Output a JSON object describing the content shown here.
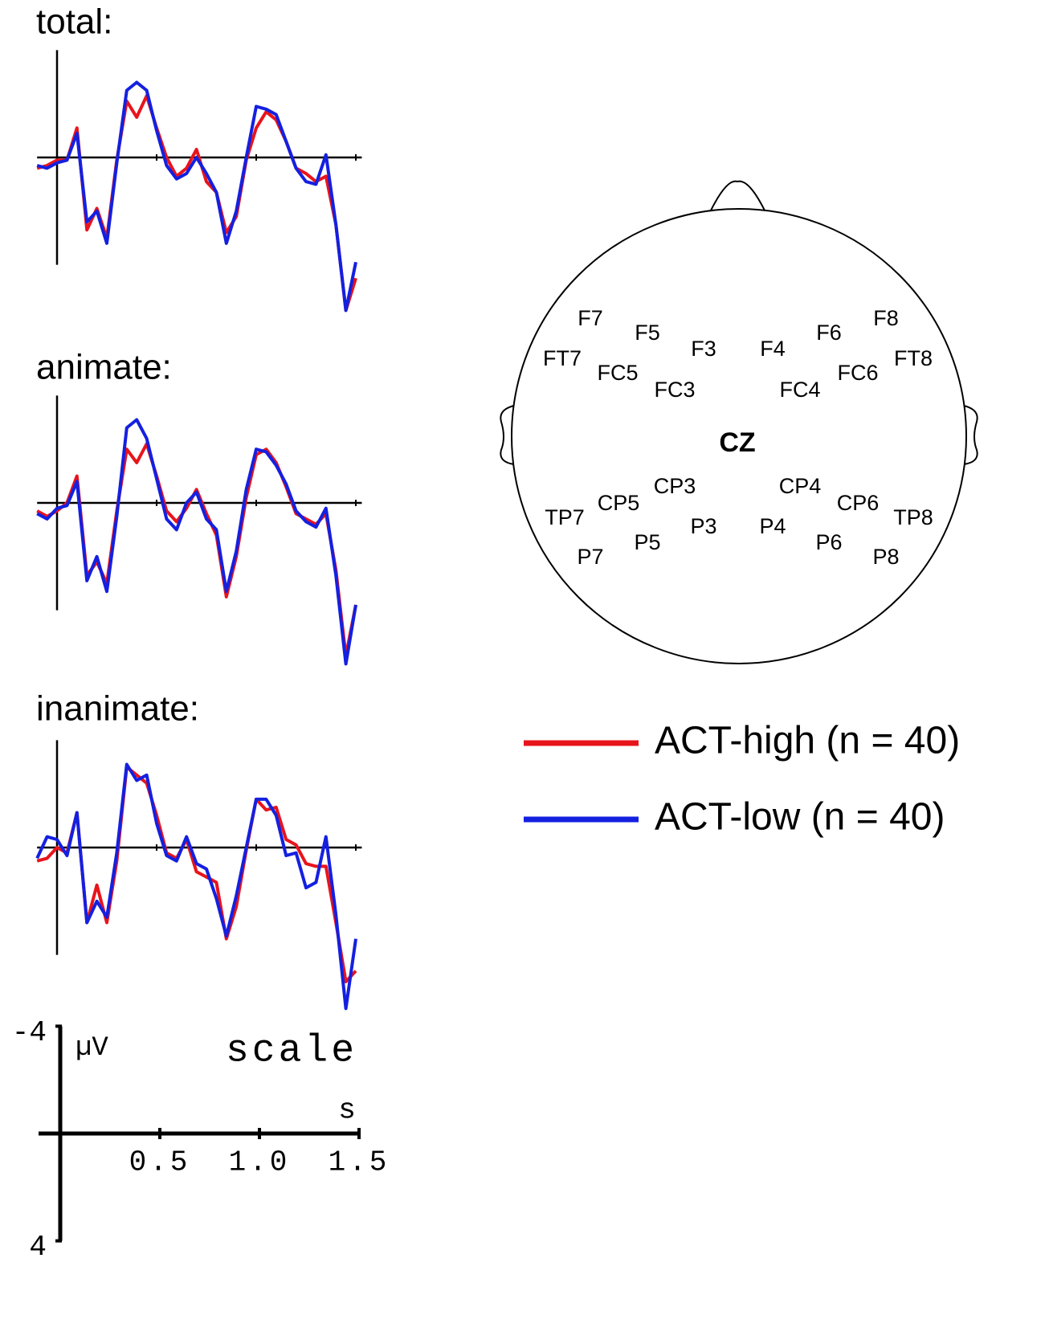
{
  "chart_data": [
    {
      "type": "line",
      "title": "total:",
      "x": [
        -0.1,
        -0.05,
        0,
        0.05,
        0.1,
        0.15,
        0.2,
        0.25,
        0.3,
        0.35,
        0.4,
        0.45,
        0.5,
        0.55,
        0.6,
        0.65,
        0.7,
        0.75,
        0.8,
        0.85,
        0.9,
        0.95,
        1.0,
        1.05,
        1.1,
        1.15,
        1.2,
        1.25,
        1.3,
        1.35,
        1.4,
        1.45,
        1.5
      ],
      "xlim": [
        -0.1,
        1.53
      ],
      "ylim": [
        -4,
        6
      ],
      "series": [
        {
          "name": "ACT-high (n = 40)",
          "color": "#e8141c",
          "values": [
            0.4,
            0.3,
            0.1,
            0.1,
            -1.1,
            2.7,
            1.9,
            3.0,
            0.1,
            -2.1,
            -1.5,
            -2.3,
            -1.1,
            0,
            0.7,
            0.4,
            -0.3,
            0.9,
            1.3,
            2.8,
            2.2,
            0.1,
            -1.1,
            -1.7,
            -1.4,
            -0.6,
            0.4,
            0.6,
            0.9,
            0.7,
            2.5,
            5.7,
            4.5
          ]
        },
        {
          "name": "ACT-low (n = 40)",
          "color": "#1420e0",
          "values": [
            0.3,
            0.4,
            0.2,
            0.1,
            -0.9,
            2.4,
            2.0,
            3.2,
            0.2,
            -2.5,
            -2.8,
            -2.5,
            -1.0,
            0.3,
            0.8,
            0.6,
            0.0,
            0.6,
            1.3,
            3.2,
            2.0,
            0.0,
            -1.9,
            -1.8,
            -1.6,
            -0.6,
            0.4,
            0.9,
            1.0,
            -0.1,
            2.5,
            5.7,
            3.9
          ]
        }
      ]
    },
    {
      "type": "line",
      "title": "animate:",
      "x": [
        -0.1,
        -0.05,
        0,
        0.05,
        0.1,
        0.15,
        0.2,
        0.25,
        0.3,
        0.35,
        0.4,
        0.45,
        0.5,
        0.55,
        0.6,
        0.65,
        0.7,
        0.75,
        0.8,
        0.85,
        0.9,
        0.95,
        1.0,
        1.05,
        1.1,
        1.15,
        1.2,
        1.25,
        1.3,
        1.35,
        1.4,
        1.45,
        1.5
      ],
      "xlim": [
        -0.1,
        1.53
      ],
      "ylim": [
        -4,
        6
      ],
      "series": [
        {
          "name": "ACT-high (n = 40)",
          "color": "#e8141c",
          "values": [
            0.3,
            0.5,
            0.3,
            0.0,
            -1.0,
            2.7,
            2.2,
            3.0,
            0.3,
            -2.0,
            -1.5,
            -2.2,
            -1.0,
            0.3,
            0.7,
            0.2,
            -0.5,
            0.4,
            1.2,
            3.5,
            2.0,
            -0.2,
            -1.8,
            -2.0,
            -1.5,
            -0.6,
            0.4,
            0.6,
            0.8,
            0.4,
            2.5,
            5.7,
            3.8
          ]
        },
        {
          "name": "ACT-low (n = 40)",
          "color": "#1420e0",
          "values": [
            0.4,
            0.6,
            0.2,
            0.1,
            -0.8,
            2.9,
            2.0,
            3.3,
            0.5,
            -2.8,
            -3.1,
            -2.4,
            -0.9,
            0.6,
            1.0,
            0.0,
            -0.4,
            0.6,
            1.0,
            3.3,
            1.8,
            -0.5,
            -2.0,
            -1.9,
            -1.4,
            -0.7,
            0.3,
            0.7,
            0.9,
            0.2,
            2.7,
            6.0,
            3.8
          ]
        }
      ]
    },
    {
      "type": "line",
      "title": "inanimate:",
      "x": [
        -0.1,
        -0.05,
        0,
        0.05,
        0.1,
        0.15,
        0.2,
        0.25,
        0.3,
        0.35,
        0.4,
        0.45,
        0.5,
        0.55,
        0.6,
        0.65,
        0.7,
        0.75,
        0.8,
        0.85,
        0.9,
        0.95,
        1.0,
        1.05,
        1.1,
        1.15,
        1.2,
        1.25,
        1.3,
        1.35,
        1.4,
        1.45,
        1.5
      ],
      "xlim": [
        -0.1,
        1.53
      ],
      "ylim": [
        -4,
        6
      ],
      "series": [
        {
          "name": "ACT-high (n = 40)",
          "color": "#e8141c",
          "values": [
            0.5,
            0.4,
            0.0,
            0.2,
            -1.3,
            2.8,
            1.4,
            2.8,
            0.5,
            -3.0,
            -2.7,
            -2.4,
            -1.2,
            0.2,
            0.4,
            -0.3,
            0.9,
            1.1,
            1.3,
            3.4,
            2.2,
            0.1,
            -1.8,
            -1.4,
            -1.5,
            -0.3,
            -0.1,
            0.6,
            0.7,
            0.7,
            2.8,
            5.0,
            4.6
          ]
        },
        {
          "name": "ACT-low (n = 40)",
          "color": "#1420e0",
          "values": [
            0.4,
            -0.4,
            -0.3,
            0.3,
            -1.3,
            2.8,
            2.0,
            2.6,
            0.2,
            -3.1,
            -2.5,
            -2.7,
            -0.9,
            0.3,
            0.5,
            -0.4,
            0.6,
            0.8,
            1.9,
            3.3,
            1.8,
            0.0,
            -1.8,
            -1.8,
            -1.2,
            0.3,
            0.2,
            1.5,
            1.3,
            -0.4,
            2.5,
            6.0,
            3.4
          ]
        }
      ]
    }
  ],
  "scale": {
    "title": "scale",
    "ylabel": "µV",
    "xlabel": "s",
    "ylim": [
      -4,
      4
    ],
    "yticks": [
      -4,
      4
    ],
    "xticks": [
      {
        "value": 0.5,
        "label": "0.5"
      },
      {
        "value": 1,
        "label": "1.0"
      },
      {
        "value": 1.5,
        "label": "1.5"
      }
    ]
  },
  "head": {
    "electrodes": [
      "F7",
      "F5",
      "F3",
      "F4",
      "F6",
      "F8",
      "FT7",
      "FC5",
      "FC3",
      "FC4",
      "FC6",
      "FT8",
      "CZ",
      "CP3",
      "CP5",
      "TP7",
      "CP4",
      "CP6",
      "TP8",
      "P3",
      "P5",
      "P7",
      "P4",
      "P6",
      "P8"
    ]
  }
}
